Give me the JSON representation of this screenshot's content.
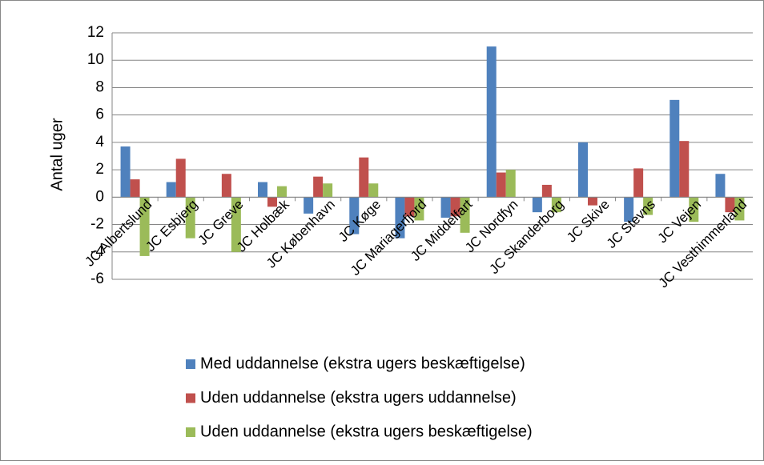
{
  "chart_data": {
    "type": "bar",
    "y_label": "Antal uger",
    "categories": [
      "JC Albertslund",
      "JC Esbjerg",
      "JC Greve",
      "JC Holbæk",
      "JC København",
      "JC Køge",
      "JC Mariagerfjord",
      "JC Middelfart",
      "JC Nordfyn",
      "JC Skanderborg",
      "JC Skive",
      "JC Stevns",
      "JC Vejen",
      "JC Vesthimmerland"
    ],
    "series": [
      {
        "name": "Med uddannelse (ekstra ugers beskæftigelse)",
        "color": "#4f81bd",
        "values": [
          3.7,
          1.1,
          0,
          1.1,
          -1.2,
          -2.7,
          -3.0,
          -1.5,
          11.0,
          -1.1,
          4.0,
          -1.8,
          7.1,
          1.7
        ]
      },
      {
        "name": "Uden uddannelse (ekstra ugers uddannelse)",
        "color": "#c0504d",
        "values": [
          1.3,
          2.8,
          1.7,
          -0.7,
          1.5,
          2.9,
          -1.4,
          -1.4,
          1.8,
          0.9,
          -0.6,
          2.1,
          4.1,
          -1.1
        ]
      },
      {
        "name": "Uden uddannelse (ekstra ugers beskæftigelse)",
        "color": "#9bbb59",
        "values": [
          -4.3,
          -3.0,
          -4.0,
          0.8,
          1.0,
          1.0,
          -1.7,
          -2.6,
          2.0,
          -1.1,
          0,
          -1.3,
          -1.8,
          -1.7
        ]
      }
    ],
    "ylim": [
      -6,
      12
    ],
    "yticks": [
      -6,
      -4,
      -2,
      0,
      2,
      4,
      6,
      8,
      10,
      12
    ],
    "grid": true
  }
}
